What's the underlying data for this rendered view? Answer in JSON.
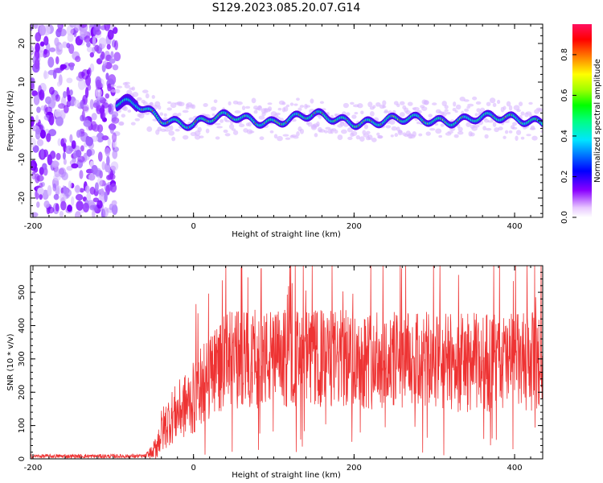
{
  "title": "S129.2023.085.20.07.G14",
  "chart_data": [
    {
      "type": "heatmap",
      "xlabel": "Height of straight line (km)",
      "ylabel": "Frequency (Hz)",
      "xlim": [
        -203,
        435
      ],
      "ylim": [
        -25,
        25
      ],
      "xticks": [
        "-200",
        "0",
        "200",
        "400"
      ],
      "xtick_values": [
        -200,
        0,
        200,
        400
      ],
      "yticks": [
        "-20",
        "-10",
        "0",
        "10",
        "20"
      ],
      "ytick_values": [
        -20,
        -10,
        0,
        10,
        20
      ],
      "colorbar": {
        "label": "Normalized spectral amplitude",
        "range": [
          0,
          0.95
        ],
        "ticks": [
          "0.0",
          "0.2",
          "0.4",
          "0.6",
          "0.8"
        ],
        "tick_values": [
          0,
          0.2,
          0.4,
          0.6,
          0.8
        ]
      },
      "noise_region_x": [
        -203,
        -95
      ],
      "signal_line": {
        "x": [
          -70,
          -40,
          -20,
          0,
          20,
          50,
          100,
          150,
          200,
          250,
          300,
          350,
          400,
          435
        ],
        "y": [
          4,
          1,
          0,
          -1,
          0,
          1,
          0,
          1,
          0,
          0,
          0,
          1,
          0,
          0
        ]
      }
    },
    {
      "type": "line",
      "xlabel": "Height of straight line (km)",
      "ylabel": "SNR (10 * v/v)",
      "xlim": [
        -203,
        435
      ],
      "ylim": [
        0,
        580
      ],
      "xticks": [
        "-200",
        "0",
        "200",
        "400"
      ],
      "xtick_values": [
        -200,
        0,
        200,
        400
      ],
      "yticks": [
        "0",
        "100",
        "200",
        "300",
        "400",
        "500"
      ],
      "ytick_values": [
        0,
        100,
        200,
        300,
        400,
        500
      ],
      "series_color": "#ee3333",
      "envelope": {
        "x": [
          -203,
          -60,
          -50,
          -40,
          -30,
          -20,
          -10,
          0,
          10,
          20,
          30,
          50,
          100,
          200,
          300,
          435
        ],
        "mean": [
          8,
          8,
          20,
          80,
          120,
          140,
          160,
          180,
          220,
          250,
          280,
          300,
          300,
          300,
          290,
          290
        ],
        "spread": [
          6,
          6,
          30,
          70,
          80,
          90,
          100,
          110,
          120,
          130,
          140,
          150,
          150,
          150,
          150,
          150
        ]
      },
      "peak_max": 580
    }
  ]
}
